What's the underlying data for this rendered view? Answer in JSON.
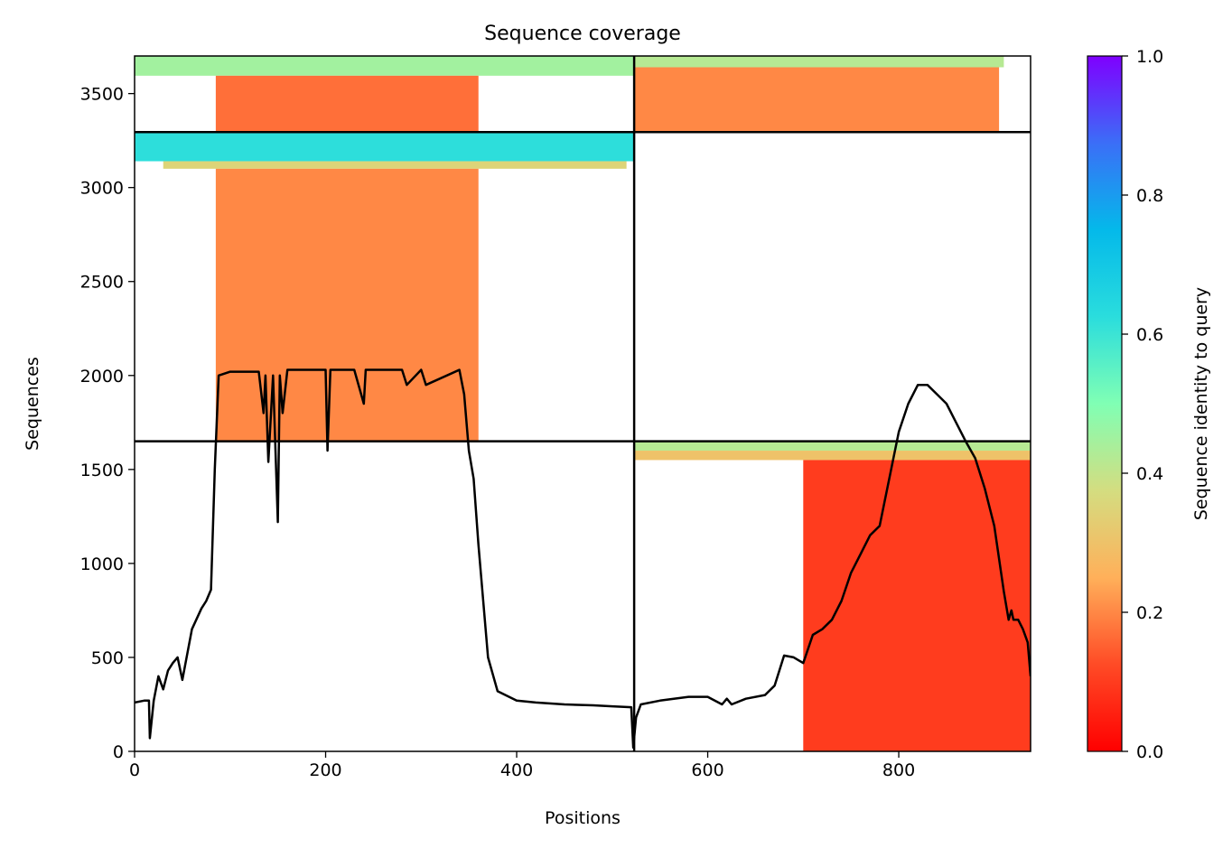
{
  "chart_data": {
    "type": "heatmap",
    "title": "Sequence coverage",
    "xlabel": "Positions",
    "ylabel": "Sequences",
    "xlim": [
      0,
      938
    ],
    "ylim": [
      0,
      3700
    ],
    "xticks": [
      0,
      200,
      400,
      600,
      800
    ],
    "yticks": [
      0,
      500,
      1000,
      1500,
      2000,
      2500,
      3000,
      3500
    ],
    "grid": false,
    "colorbar": {
      "label": "Sequence identity to query",
      "colormap": "rainbow_r",
      "range": [
        0.0,
        1.0
      ],
      "ticks": [
        "0.0",
        "0.2",
        "0.4",
        "0.6",
        "0.8",
        "1.0"
      ]
    },
    "divider_lines": {
      "x": [
        523
      ],
      "y": [
        1650,
        3295
      ]
    },
    "coverage_blocks": [
      {
        "x0": 0,
        "x1": 523,
        "y0": 3295,
        "y1": 3700,
        "rows": [
          {
            "y0": 3595,
            "y1": 3700,
            "x0": 0,
            "x1": 523,
            "identity": 0.45
          },
          {
            "y0": 3300,
            "y1": 3595,
            "x0": 85,
            "x1": 360,
            "identity": 0.17
          }
        ]
      },
      {
        "x0": 523,
        "x1": 938,
        "y0": 3295,
        "y1": 3700,
        "rows": [
          {
            "y0": 3640,
            "y1": 3700,
            "x0": 523,
            "x1": 910,
            "identity": 0.42
          },
          {
            "y0": 3300,
            "y1": 3640,
            "x0": 523,
            "x1": 905,
            "identity": 0.2
          }
        ]
      },
      {
        "x0": 0,
        "x1": 523,
        "y0": 1650,
        "y1": 3295,
        "rows": [
          {
            "y0": 3140,
            "y1": 3295,
            "x0": 0,
            "x1": 523,
            "identity": 0.62
          },
          {
            "y0": 3100,
            "y1": 3140,
            "x0": 30,
            "x1": 515,
            "identity": 0.35
          },
          {
            "y0": 1650,
            "y1": 3100,
            "x0": 85,
            "x1": 360,
            "identity": 0.2
          }
        ]
      },
      {
        "x0": 523,
        "x1": 938,
        "y0": 0,
        "y1": 1650,
        "rows": [
          {
            "y0": 1600,
            "y1": 1650,
            "x0": 523,
            "x1": 938,
            "identity": 0.42
          },
          {
            "y0": 1550,
            "y1": 1600,
            "x0": 523,
            "x1": 938,
            "identity": 0.3
          },
          {
            "y0": 0,
            "y1": 1550,
            "x0": 700,
            "x1": 938,
            "identity": 0.1
          }
        ]
      }
    ],
    "coverage_line": {
      "color": "#000000",
      "x": [
        0,
        10,
        15,
        16,
        20,
        25,
        30,
        35,
        40,
        45,
        50,
        60,
        70,
        75,
        80,
        84,
        88,
        100,
        130,
        135,
        137,
        140,
        145,
        150,
        152,
        155,
        160,
        180,
        200,
        202,
        205,
        230,
        240,
        242,
        245,
        280,
        285,
        300,
        305,
        340,
        345,
        350,
        355,
        360,
        370,
        380,
        400,
        420,
        450,
        480,
        500,
        520,
        522,
        525,
        530,
        550,
        580,
        600,
        615,
        620,
        625,
        640,
        660,
        670,
        680,
        690,
        700,
        710,
        720,
        730,
        740,
        750,
        760,
        770,
        780,
        790,
        800,
        810,
        820,
        830,
        840,
        850,
        860,
        870,
        880,
        890,
        900,
        910,
        915,
        918,
        920,
        925,
        930,
        935,
        938
      ],
      "y": [
        260,
        270,
        270,
        70,
        270,
        400,
        330,
        430,
        470,
        500,
        380,
        650,
        760,
        800,
        860,
        1500,
        2000,
        2020,
        2020,
        1800,
        2000,
        1540,
        2000,
        1220,
        2000,
        1800,
        2030,
        2030,
        2030,
        1600,
        2030,
        2030,
        1850,
        2030,
        2030,
        2030,
        1950,
        2030,
        1950,
        2030,
        1900,
        1600,
        1450,
        1100,
        500,
        320,
        270,
        260,
        250,
        245,
        240,
        235,
        20,
        180,
        250,
        270,
        290,
        290,
        250,
        280,
        250,
        280,
        300,
        350,
        510,
        500,
        470,
        620,
        650,
        700,
        800,
        950,
        1050,
        1150,
        1200,
        1450,
        1700,
        1850,
        1950,
        1950,
        1900,
        1850,
        1750,
        1650,
        1560,
        1400,
        1200,
        850,
        700,
        750,
        700,
        700,
        650,
        580,
        400
      ]
    }
  }
}
